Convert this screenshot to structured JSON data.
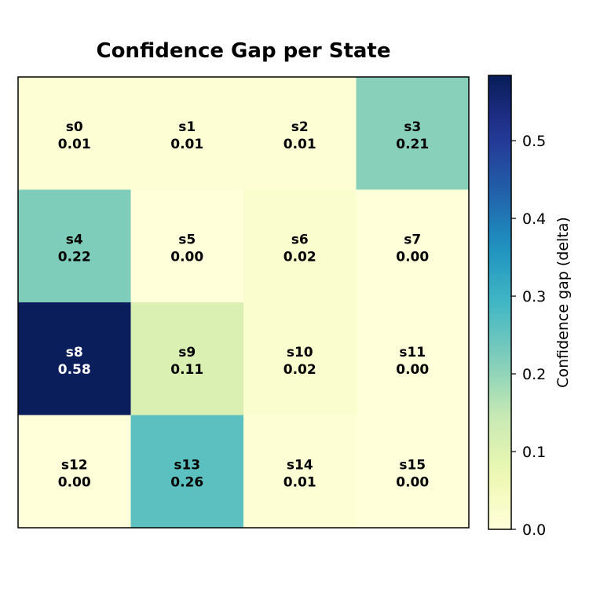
{
  "chart_data": {
    "type": "heatmap",
    "title": "Confidence Gap per State",
    "rows": 4,
    "cols": 4,
    "cells": [
      {
        "label": "s0",
        "value": 0.01
      },
      {
        "label": "s1",
        "value": 0.01
      },
      {
        "label": "s2",
        "value": 0.01
      },
      {
        "label": "s3",
        "value": 0.21
      },
      {
        "label": "s4",
        "value": 0.22
      },
      {
        "label": "s5",
        "value": 0.0
      },
      {
        "label": "s6",
        "value": 0.02
      },
      {
        "label": "s7",
        "value": 0.0
      },
      {
        "label": "s8",
        "value": 0.58
      },
      {
        "label": "s9",
        "value": 0.11
      },
      {
        "label": "s10",
        "value": 0.02
      },
      {
        "label": "s11",
        "value": 0.0
      },
      {
        "label": "s12",
        "value": 0.0
      },
      {
        "label": "s13",
        "value": 0.26
      },
      {
        "label": "s14",
        "value": 0.01
      },
      {
        "label": "s15",
        "value": 0.0
      }
    ],
    "colormap": "YlGnBu",
    "colorbar": {
      "label": "Confidence gap (delta)",
      "range": [
        0.0,
        0.584
      ],
      "ticks": [
        "0.0",
        "0.1",
        "0.2",
        "0.3",
        "0.4",
        "0.5"
      ]
    },
    "grid": false
  }
}
